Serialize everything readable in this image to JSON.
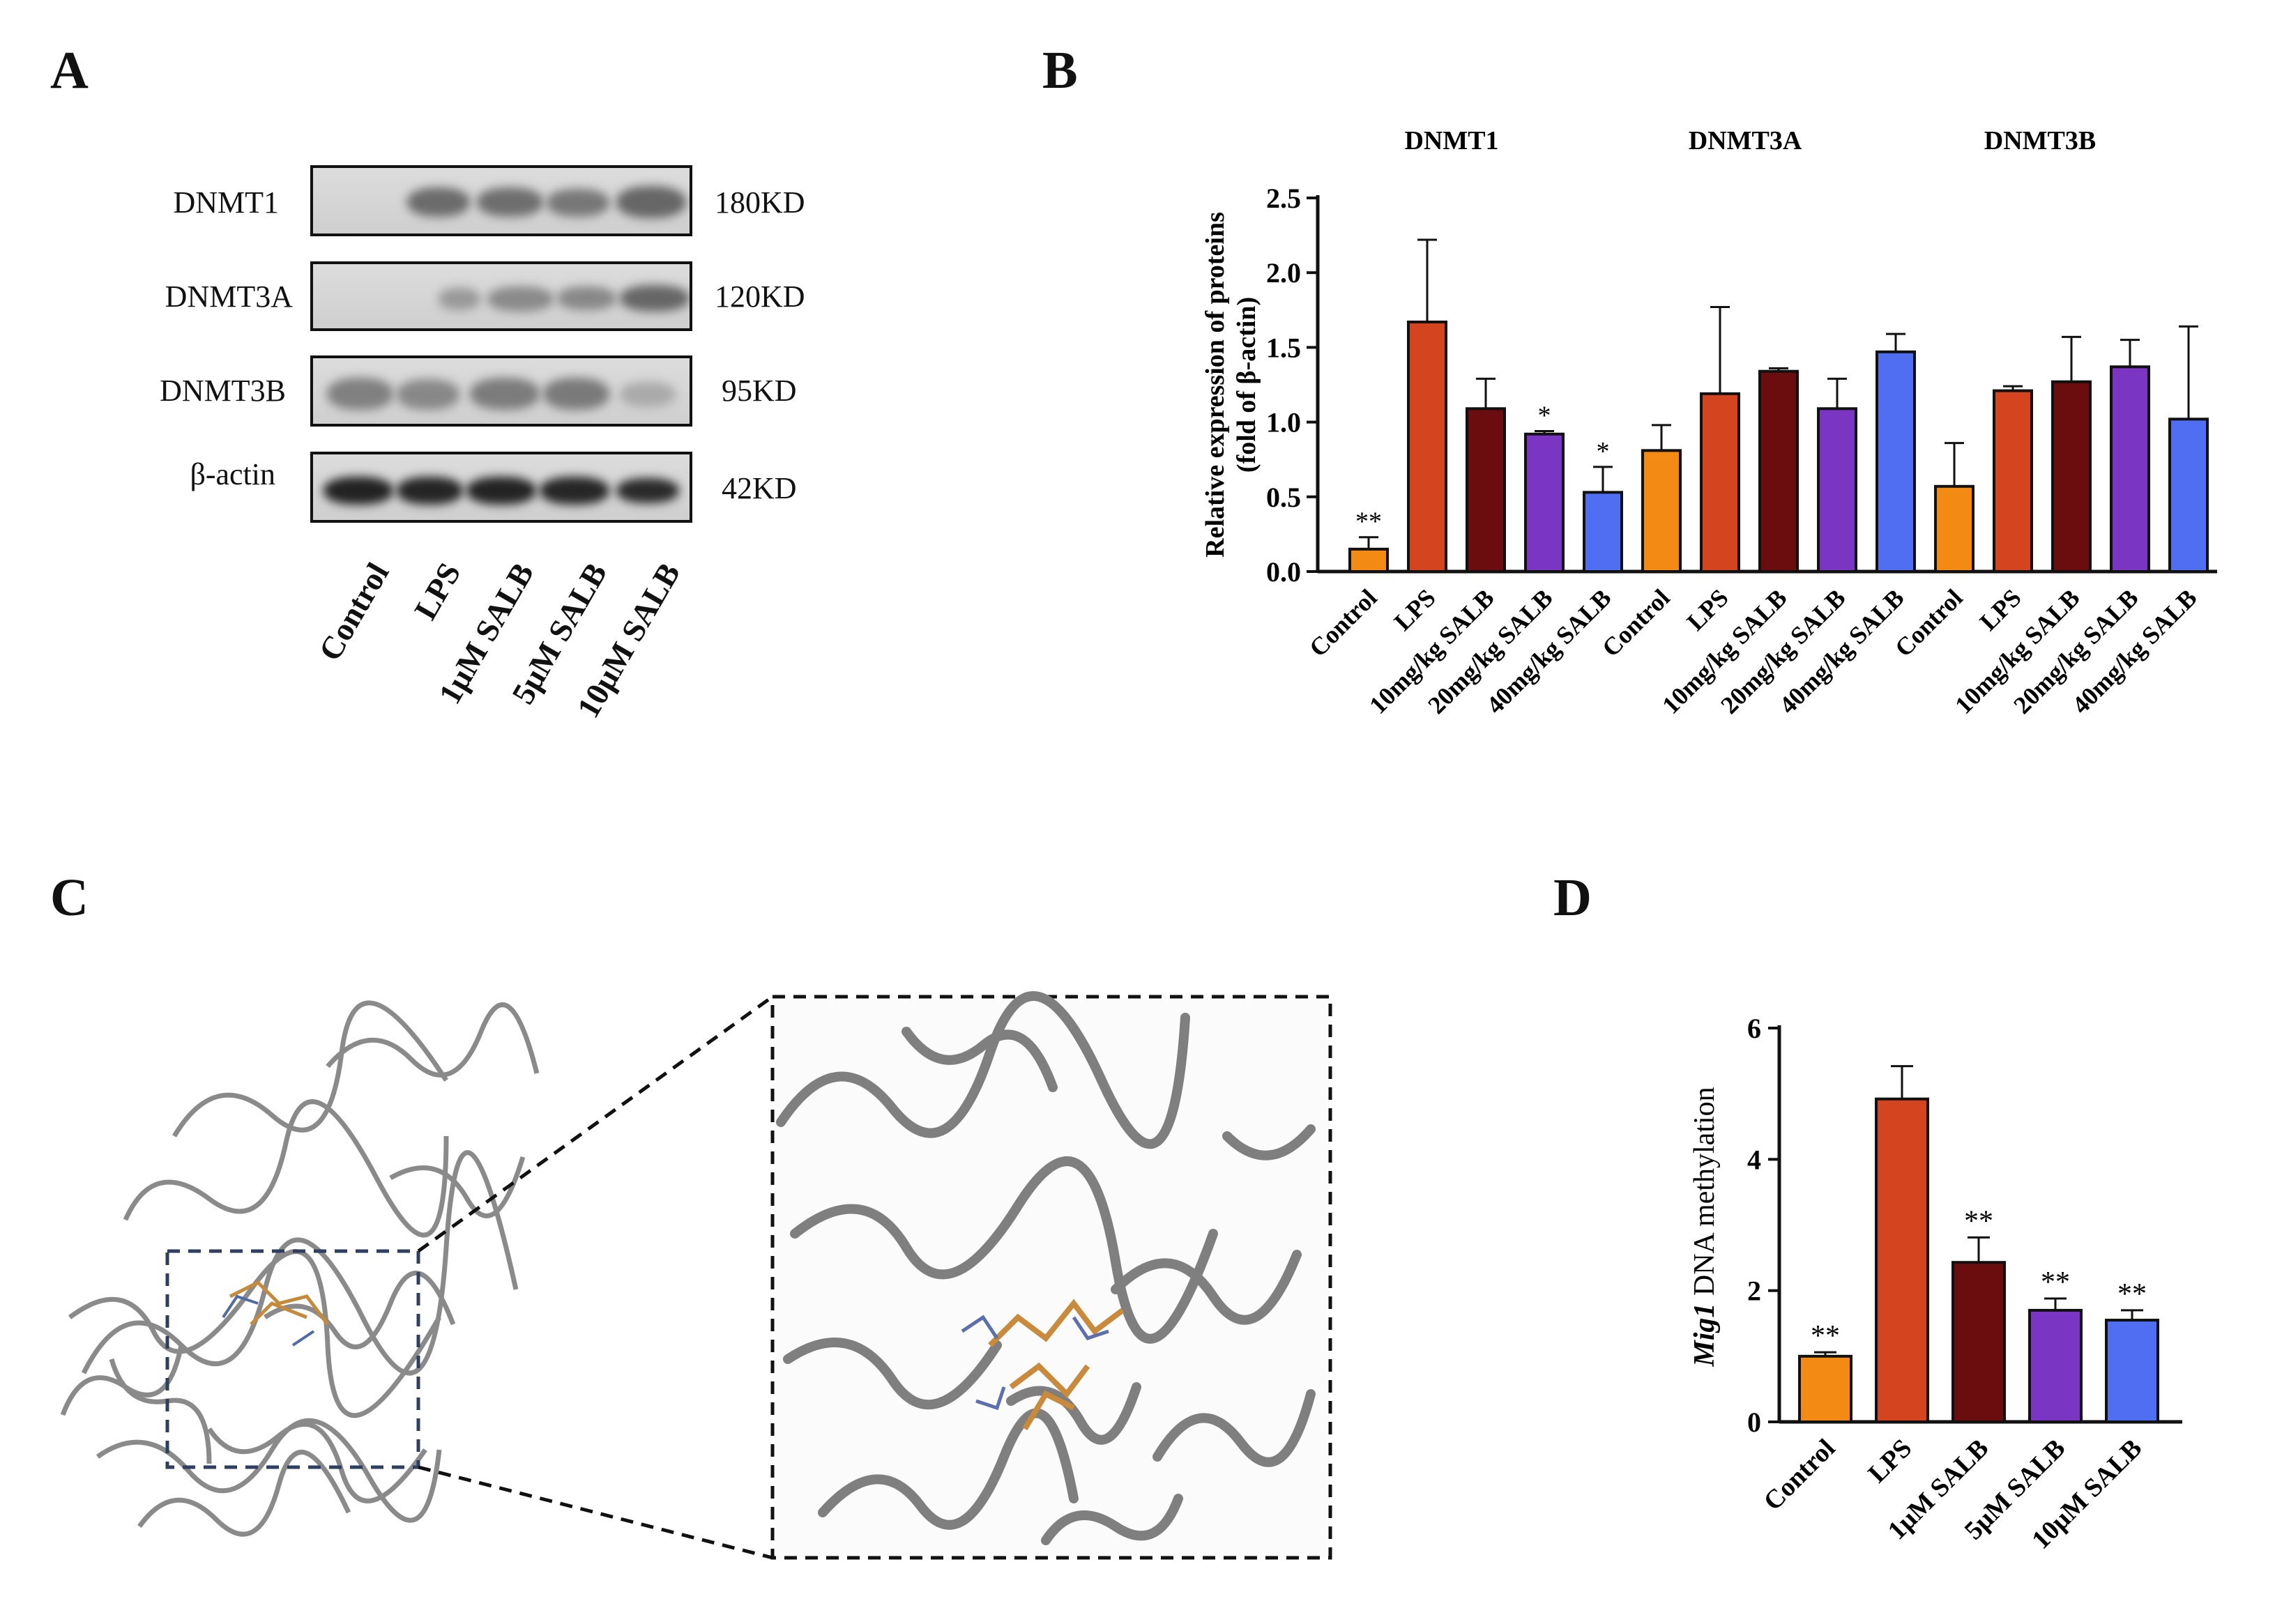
{
  "panels": {
    "a": "A",
    "b": "B",
    "c": "C",
    "d": "D"
  },
  "panel_a": {
    "rows": [
      {
        "protein": "DNMT1",
        "size": "180KD"
      },
      {
        "protein": "DNMT3A",
        "size": "120KD"
      },
      {
        "protein": "DNMT3B",
        "size": "95KD"
      },
      {
        "protein": "β-actin",
        "size": "42KD"
      }
    ],
    "lanes": [
      "Control",
      "LPS",
      "1μM SALB",
      "5μM SALB",
      "10μM SALB"
    ]
  },
  "panel_c": {
    "description_icon": "protein-ribbon-docking-icon"
  },
  "colors": {
    "control": "#f28a14",
    "lps": "#d4441f",
    "salb10": "#6b0c0e",
    "salb20": "#7b35c3",
    "salb40": "#4f6ef2"
  },
  "chart_data": [
    {
      "type": "bar",
      "panel": "B",
      "ylabel_line1": "Relative expression of proteins",
      "ylabel_line2": "(fold of β-actin)",
      "ylim": [
        0,
        2.5
      ],
      "yticks": [
        "0.0",
        "0.5",
        "1.0",
        "1.5",
        "2.0",
        "2.5"
      ],
      "groups": [
        {
          "name": "DNMT1",
          "categories": [
            "Control",
            "LPS",
            "10mg/kg SALB",
            "20mg/kg SALB",
            "40mg/kg SALB"
          ],
          "values": [
            0.15,
            1.67,
            1.09,
            0.92,
            0.53
          ],
          "errors": [
            0.08,
            0.55,
            0.2,
            0.02,
            0.17
          ],
          "annotations": [
            "**",
            "",
            "",
            "*",
            "*"
          ]
        },
        {
          "name": "DNMT3A",
          "categories": [
            "Control",
            "LPS",
            "10mg/kg SALB",
            "20mg/kg SALB",
            "40mg/kg SALB"
          ],
          "values": [
            0.81,
            1.19,
            1.34,
            1.09,
            1.47
          ],
          "errors": [
            0.17,
            0.58,
            0.02,
            0.2,
            0.12
          ],
          "annotations": [
            "",
            "",
            "",
            "",
            ""
          ]
        },
        {
          "name": "DNMT3B",
          "categories": [
            "Control",
            "LPS",
            "10mg/kg SALB",
            "20mg/kg SALB",
            "40mg/kg SALB"
          ],
          "values": [
            0.57,
            1.21,
            1.27,
            1.37,
            1.02
          ],
          "errors": [
            0.29,
            0.03,
            0.3,
            0.18,
            0.62
          ],
          "annotations": [
            "",
            "",
            "",
            "",
            ""
          ]
        }
      ]
    },
    {
      "type": "bar",
      "panel": "D",
      "ylabel_italic": "Mig1",
      "ylabel_rest": " DNA methylation",
      "ylim": [
        0,
        6
      ],
      "yticks": [
        "0",
        "2",
        "4",
        "6"
      ],
      "categories": [
        "Control",
        "LPS",
        "1μM SALB",
        "5μM SALB",
        "10μM SALB"
      ],
      "values": [
        1.0,
        4.92,
        2.43,
        1.7,
        1.55
      ],
      "errors": [
        0.06,
        0.5,
        0.38,
        0.18,
        0.15
      ],
      "annotations": [
        "**",
        "",
        "**",
        "**",
        "**"
      ]
    }
  ]
}
